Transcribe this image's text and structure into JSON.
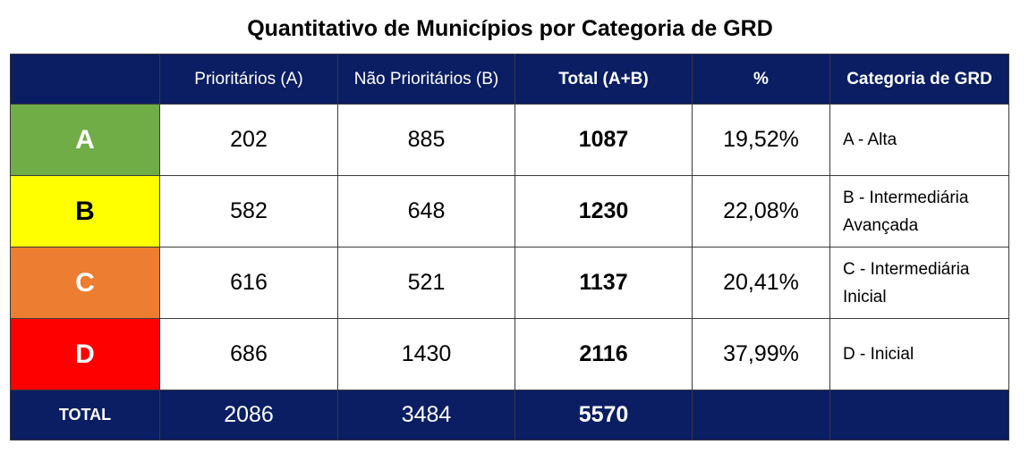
{
  "chart_data": {
    "type": "table",
    "title": "Quantitativo de Municípios por Categoria de GRD",
    "columns": [
      "",
      "Prioritários (A)",
      "Não Prioritários (B)",
      "Total (A+B)",
      "%",
      "Categoria de GRD"
    ],
    "rows": [
      {
        "category": "A",
        "prioritarios": "202",
        "nao_prioritarios": "885",
        "total": "1087",
        "percent": "19,52%",
        "descricao": "A - Alta",
        "color": "#70ad47"
      },
      {
        "category": "B",
        "prioritarios": "582",
        "nao_prioritarios": "648",
        "total": "1230",
        "percent": "22,08%",
        "descricao": "B - Intermediária Avançada",
        "color": "#ffff00"
      },
      {
        "category": "C",
        "prioritarios": "616",
        "nao_prioritarios": "521",
        "total": "1137",
        "percent": "20,41%",
        "descricao": "C - Intermediária Inicial",
        "color": "#ed7d31"
      },
      {
        "category": "D",
        "prioritarios": "686",
        "nao_prioritarios": "1430",
        "total": "2116",
        "percent": "37,99%",
        "descricao": "D - Inicial",
        "color": "#ff0000"
      }
    ],
    "footer": {
      "label": "TOTAL",
      "prioritarios": "2086",
      "nao_prioritarios": "3484",
      "total": "5570",
      "percent": "",
      "descricao": ""
    },
    "colors": {
      "header_bg": "#0b1e63",
      "header_text": "#ffffff",
      "white_cat_text": "#ffffff",
      "dark_cat_text": "#000000"
    }
  }
}
